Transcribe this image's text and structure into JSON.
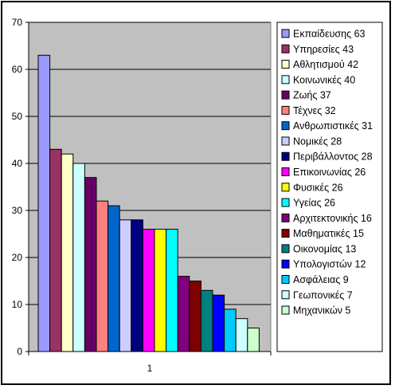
{
  "chart_data": {
    "type": "bar",
    "categories": [
      "1"
    ],
    "ylim": [
      0,
      70
    ],
    "yticks": [
      0,
      10,
      20,
      30,
      40,
      50,
      60,
      70
    ],
    "grid": true,
    "plot_background": "#c0c0c0",
    "legend_position": "right",
    "series": [
      {
        "name": "Εκπαίδευσης 63",
        "values": [
          63
        ],
        "color": "#9999ff"
      },
      {
        "name": "Υπηρεσίες 43",
        "values": [
          43
        ],
        "color": "#993366"
      },
      {
        "name": "Αθλητισμού 42",
        "values": [
          42
        ],
        "color": "#ffffcc"
      },
      {
        "name": "Κοινωνικές 40",
        "values": [
          40
        ],
        "color": "#ccffff"
      },
      {
        "name": "Ζωής 37",
        "values": [
          37
        ],
        "color": "#660066"
      },
      {
        "name": "Τέχνες 32",
        "values": [
          32
        ],
        "color": "#ff8080"
      },
      {
        "name": "Ανθρωπιστικές 31",
        "values": [
          31
        ],
        "color": "#0066cc"
      },
      {
        "name": "Νομικές 28",
        "values": [
          28
        ],
        "color": "#ccccff"
      },
      {
        "name": "Περιβάλλοντος 28",
        "values": [
          28
        ],
        "color": "#000080"
      },
      {
        "name": "Επικοινωνίας 26",
        "values": [
          26
        ],
        "color": "#ff00ff"
      },
      {
        "name": "Φυσικές 26",
        "values": [
          26
        ],
        "color": "#ffff00"
      },
      {
        "name": "Υγείας 26",
        "values": [
          26
        ],
        "color": "#00ffff"
      },
      {
        "name": "Αρχιτεκτονικής 16",
        "values": [
          16
        ],
        "color": "#800080"
      },
      {
        "name": "Μαθηματικές 15",
        "values": [
          15
        ],
        "color": "#800000"
      },
      {
        "name": "Οικονομίας 13",
        "values": [
          13
        ],
        "color": "#008080"
      },
      {
        "name": "Υπολογιστών 12",
        "values": [
          12
        ],
        "color": "#0000ff"
      },
      {
        "name": "Ασφάλειας 9",
        "values": [
          9
        ],
        "color": "#00ccff"
      },
      {
        "name": "Γεωπονικές 7",
        "values": [
          7
        ],
        "color": "#ccffff"
      },
      {
        "name": "Μηχανικών 5",
        "values": [
          5
        ],
        "color": "#ccffcc"
      }
    ]
  }
}
